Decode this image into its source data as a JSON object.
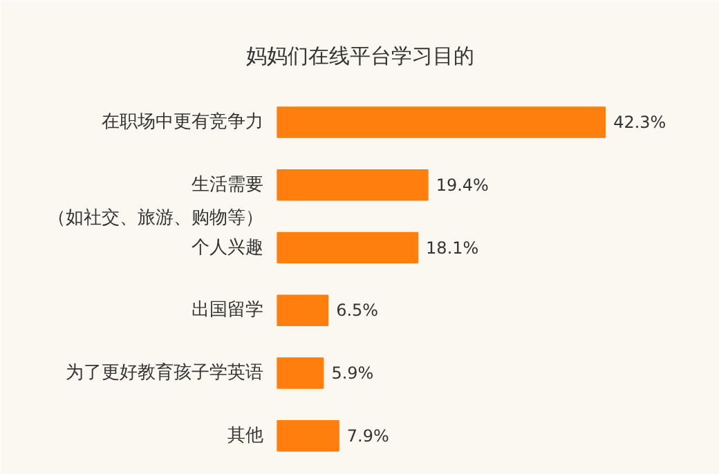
{
  "chart_data": {
    "type": "bar",
    "orientation": "horizontal",
    "title": "妈妈们在线平台学习目的",
    "categories": [
      "在职场中更有竞争力",
      "生活需要（如社交、旅游、购物等）",
      "个人兴趣",
      "出国留学",
      "为了更好教育孩子学英语",
      "其他"
    ],
    "values": [
      42.3,
      19.4,
      18.1,
      6.5,
      5.9,
      7.9
    ],
    "value_labels": [
      "42.3%",
      "19.4%",
      "18.1%",
      "6.5%",
      "5.9%",
      "7.9%"
    ],
    "color": "#ff7f0e"
  }
}
